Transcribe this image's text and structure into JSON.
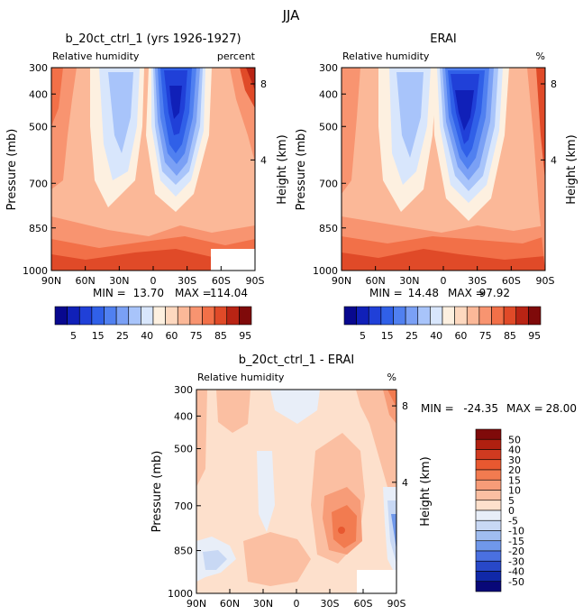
{
  "figure": {
    "title": "JJA"
  },
  "colorbar_top": {
    "labels": [
      "5",
      "15",
      "25",
      "40",
      "60",
      "75",
      "85",
      "95"
    ],
    "colors": [
      "#08088f",
      "#1020b8",
      "#2040d8",
      "#3060e8",
      "#5080f0",
      "#7aa0f5",
      "#a8c4fa",
      "#d8e6fc",
      "#fdf0e0",
      "#fdd8bf",
      "#fbb898",
      "#f89470",
      "#f27048",
      "#e04a28",
      "#b92414",
      "#7f0a0a"
    ]
  },
  "colorbar_diff": {
    "labels": [
      "50",
      "40",
      "30",
      "20",
      "15",
      "10",
      "5",
      "0",
      "-5",
      "-10",
      "-15",
      "-20",
      "-30",
      "-40",
      "-50"
    ],
    "colors": [
      "#7f0a0a",
      "#b02010",
      "#d03a20",
      "#e85830",
      "#f27b50",
      "#f79c78",
      "#fbbfa2",
      "#fde0cc",
      "#e8eef8",
      "#c8d8f4",
      "#a0bdf0",
      "#7098ea",
      "#4a70e0",
      "#2848c8",
      "#1028a8",
      "#080878"
    ]
  },
  "chart_data": [
    {
      "type": "heatmap",
      "title": "b_20ct_ctrl_1 (yrs 1926-1927)",
      "variable": "Relative humidity",
      "units": "percent",
      "ylabel": "Pressure (mb)",
      "ylabel_right": "Height (km)",
      "x_ticks": [
        "90N",
        "60N",
        "30N",
        "0",
        "30S",
        "60S",
        "90S"
      ],
      "y_ticks": [
        "300",
        "400",
        "500",
        "700",
        "850",
        "1000"
      ],
      "height_ticks": [
        "8",
        "4"
      ],
      "min_label": "MIN =",
      "min_value": "13.70",
      "max_label": "MAX =",
      "max_value": "114.04",
      "contour_levels": [
        5,
        10,
        15,
        20,
        25,
        30,
        40,
        50,
        60,
        70,
        75,
        80,
        85,
        90,
        95
      ]
    },
    {
      "type": "heatmap",
      "title": "ERAI",
      "variable": "Relative humidity",
      "units": "%",
      "ylabel": "Pressure (mb)",
      "ylabel_right": "Height (km)",
      "x_ticks": [
        "90N",
        "60N",
        "30N",
        "0",
        "30S",
        "60S",
        "90S"
      ],
      "y_ticks": [
        "300",
        "400",
        "500",
        "700",
        "850",
        "1000"
      ],
      "height_ticks": [
        "8",
        "4"
      ],
      "min_label": "MIN =",
      "min_value": "14.48",
      "max_label": "MAX =",
      "max_value": "97.92"
    },
    {
      "type": "heatmap",
      "title": "b_20ct_ctrl_1 - ERAI",
      "variable": "Relative humidity",
      "units": "%",
      "ylabel": "Pressure (mb)",
      "ylabel_right": "Height (km)",
      "x_ticks": [
        "90N",
        "60N",
        "30N",
        "0",
        "30S",
        "60S",
        "90S"
      ],
      "y_ticks": [
        "300",
        "400",
        "500",
        "700",
        "850",
        "1000"
      ],
      "height_ticks": [
        "8",
        "4"
      ],
      "min_label": "MIN =",
      "min_value": "-24.35",
      "max_label": "MAX =",
      "max_value": "28.00",
      "contour_levels": [
        -50,
        -40,
        -30,
        -20,
        -15,
        -10,
        -5,
        0,
        5,
        10,
        15,
        20,
        30,
        40,
        50
      ]
    }
  ]
}
